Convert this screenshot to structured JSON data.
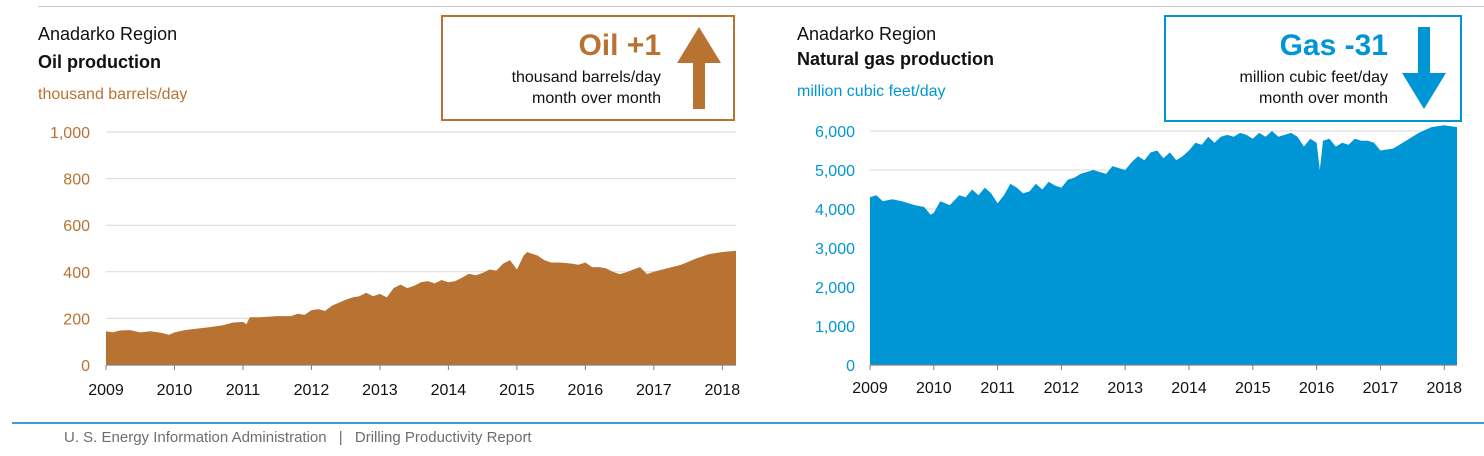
{
  "footer": {
    "source": "U. S. Energy Information Administration",
    "separator": "|",
    "report": "Drilling Productivity Report"
  },
  "oil": {
    "region": "Anadarko Region",
    "title": "Oil production",
    "unit": "thousand barrels/day",
    "callout": {
      "headline": "Oil +1",
      "line1": "thousand barrels/day",
      "line2": "month over month",
      "direction": "up"
    },
    "color": "#b87333"
  },
  "gas": {
    "region": "Anadarko Region",
    "title": "Natural gas production",
    "unit": "million cubic feet/day",
    "callout": {
      "headline": "Gas -31",
      "line1": "million cubic feet/day",
      "line2": "month over month",
      "direction": "down"
    },
    "color": "#0096d6"
  },
  "chart_data": [
    {
      "type": "area",
      "title": "Oil production",
      "ylabel": "thousand barrels/day",
      "color": "#b87333",
      "ylim": [
        0,
        1000
      ],
      "yticks": [
        0,
        200,
        400,
        600,
        800,
        1000
      ],
      "ytick_labels": [
        "0",
        "200",
        "400",
        "600",
        "800",
        "1,000"
      ],
      "xlim": [
        2009.0,
        2018.2
      ],
      "xticks": [
        2009,
        2010,
        2011,
        2012,
        2013,
        2014,
        2015,
        2016,
        2017,
        2018
      ],
      "xtick_labels": [
        "2009",
        "2010",
        "2011",
        "2012",
        "2013",
        "2014",
        "2015",
        "2016",
        "2017",
        "2018"
      ],
      "grid": true,
      "series": [
        {
          "x": [
            2009.0,
            2009.1,
            2009.2,
            2009.35,
            2009.5,
            2009.65,
            2009.8,
            2009.92,
            2010.0,
            2010.15,
            2010.3,
            2010.5,
            2010.7,
            2010.85,
            2011.0,
            2011.05,
            2011.1,
            2011.25,
            2011.5,
            2011.7,
            2011.8,
            2011.9,
            2012.0,
            2012.1,
            2012.2,
            2012.3,
            2012.5,
            2012.6,
            2012.7,
            2012.8,
            2012.9,
            2013.0,
            2013.1,
            2013.2,
            2013.3,
            2013.4,
            2013.5,
            2013.6,
            2013.7,
            2013.8,
            2013.9,
            2014.0,
            2014.1,
            2014.2,
            2014.3,
            2014.4,
            2014.5,
            2014.6,
            2014.7,
            2014.8,
            2014.9,
            2015.0,
            2015.1,
            2015.15,
            2015.2,
            2015.3,
            2015.4,
            2015.5,
            2015.6,
            2015.7,
            2015.8,
            2015.9,
            2016.0,
            2016.1,
            2016.2,
            2016.3,
            2016.4,
            2016.5,
            2016.6,
            2016.7,
            2016.8,
            2016.9,
            2017.0,
            2017.2,
            2017.4,
            2017.6,
            2017.8,
            2018.0,
            2018.2
          ],
          "y": [
            145,
            140,
            148,
            150,
            140,
            145,
            138,
            130,
            140,
            150,
            155,
            162,
            170,
            182,
            185,
            175,
            205,
            205,
            210,
            210,
            220,
            215,
            235,
            240,
            232,
            255,
            280,
            290,
            295,
            310,
            295,
            305,
            290,
            330,
            345,
            330,
            340,
            355,
            360,
            350,
            365,
            355,
            360,
            375,
            392,
            385,
            395,
            410,
            405,
            435,
            450,
            410,
            470,
            485,
            480,
            470,
            450,
            440,
            440,
            438,
            435,
            430,
            440,
            420,
            420,
            415,
            400,
            390,
            398,
            410,
            420,
            390,
            400,
            415,
            430,
            455,
            475,
            485,
            490
          ]
        }
      ]
    },
    {
      "type": "area",
      "title": "Natural gas production",
      "ylabel": "million cubic feet/day",
      "color": "#0096d6",
      "ylim": [
        0,
        6000
      ],
      "yticks": [
        0,
        1000,
        2000,
        3000,
        4000,
        5000,
        6000
      ],
      "ytick_labels": [
        "0",
        "1,000",
        "2,000",
        "3,000",
        "4,000",
        "5,000",
        "6,000"
      ],
      "xlim": [
        2009.0,
        2018.2
      ],
      "xticks": [
        2009,
        2010,
        2011,
        2012,
        2013,
        2014,
        2015,
        2016,
        2017,
        2018
      ],
      "xtick_labels": [
        "2009",
        "2010",
        "2011",
        "2012",
        "2013",
        "2014",
        "2015",
        "2016",
        "2017",
        "2018"
      ],
      "grid": true,
      "series": [
        {
          "x": [
            2009.0,
            2009.1,
            2009.2,
            2009.35,
            2009.5,
            2009.7,
            2009.85,
            2009.95,
            2010.0,
            2010.1,
            2010.25,
            2010.4,
            2010.5,
            2010.6,
            2010.7,
            2010.8,
            2010.9,
            2011.0,
            2011.1,
            2011.2,
            2011.3,
            2011.4,
            2011.5,
            2011.6,
            2011.7,
            2011.8,
            2011.9,
            2012.0,
            2012.1,
            2012.2,
            2012.3,
            2012.5,
            2012.6,
            2012.7,
            2012.8,
            2012.9,
            2013.0,
            2013.1,
            2013.2,
            2013.3,
            2013.4,
            2013.5,
            2013.6,
            2013.7,
            2013.8,
            2013.9,
            2014.0,
            2014.1,
            2014.2,
            2014.3,
            2014.4,
            2014.5,
            2014.6,
            2014.7,
            2014.8,
            2014.9,
            2015.0,
            2015.1,
            2015.2,
            2015.3,
            2015.4,
            2015.5,
            2015.6,
            2015.7,
            2015.8,
            2015.9,
            2016.0,
            2016.05,
            2016.1,
            2016.2,
            2016.3,
            2016.4,
            2016.5,
            2016.6,
            2016.7,
            2016.8,
            2016.9,
            2017.0,
            2017.2,
            2017.4,
            2017.6,
            2017.8,
            2018.0,
            2018.2
          ],
          "y": [
            4300,
            4350,
            4200,
            4250,
            4200,
            4100,
            4050,
            3850,
            3900,
            4200,
            4100,
            4350,
            4300,
            4500,
            4350,
            4550,
            4400,
            4150,
            4350,
            4650,
            4550,
            4400,
            4450,
            4650,
            4500,
            4700,
            4600,
            4550,
            4750,
            4800,
            4900,
            5000,
            4950,
            4900,
            5100,
            5050,
            5000,
            5200,
            5350,
            5250,
            5450,
            5500,
            5300,
            5450,
            5250,
            5350,
            5500,
            5700,
            5650,
            5850,
            5700,
            5850,
            5900,
            5850,
            5950,
            5900,
            5800,
            5950,
            5850,
            6000,
            5850,
            5900,
            5950,
            5850,
            5600,
            5800,
            5700,
            5000,
            5750,
            5800,
            5600,
            5700,
            5650,
            5800,
            5750,
            5750,
            5700,
            5500,
            5550,
            5750,
            5950,
            6100,
            6150,
            6100
          ]
        }
      ]
    }
  ]
}
